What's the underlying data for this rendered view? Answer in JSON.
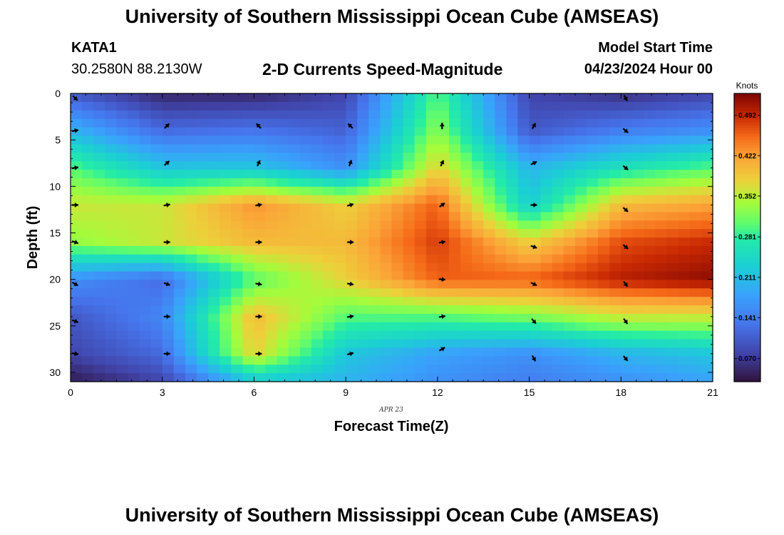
{
  "header": {
    "title": "University of Southern Mississippi Ocean Cube (AMSEAS)",
    "station": "KATA1",
    "coordinates": "30.2580N  88.2130W",
    "subtitle": "2-D Currents Speed-Magnitude",
    "model_start_label": "Model Start Time",
    "model_start_value": "04/23/2024 Hour 00"
  },
  "footer": {
    "title": "University of Southern Mississippi Ocean Cube (AMSEAS)"
  },
  "chart_data": {
    "type": "heatmap",
    "title": "2-D Currents Speed-Magnitude",
    "xlabel": "Forecast Time(Z)",
    "ylabel": "Depth (ft)",
    "date_label": "APR 23",
    "xlim": [
      0,
      21
    ],
    "ylim": [
      0,
      31
    ],
    "x_ticks": [
      0,
      3,
      6,
      9,
      12,
      15,
      18,
      21
    ],
    "y_ticks": [
      0,
      5,
      10,
      15,
      20,
      25,
      30
    ],
    "colorbar": {
      "units": "Knots",
      "range": [
        0.03,
        0.53
      ],
      "ticks": [
        0.07,
        0.141,
        0.211,
        0.281,
        0.352,
        0.422,
        0.492
      ],
      "tick_labels": [
        "0.070",
        "0.141",
        "0.211",
        "0.281",
        "0.352",
        "0.422",
        "0.492"
      ]
    },
    "speed_grid": {
      "times": [
        0,
        3,
        6,
        9,
        12,
        15,
        18,
        21
      ],
      "depths": [
        0,
        4,
        8,
        12,
        16,
        20,
        24,
        28,
        31
      ],
      "values": [
        [
          0.1,
          0.05,
          0.05,
          0.08,
          0.3,
          0.08,
          0.06,
          0.08
        ],
        [
          0.2,
          0.12,
          0.13,
          0.11,
          0.33,
          0.1,
          0.14,
          0.16
        ],
        [
          0.3,
          0.22,
          0.22,
          0.16,
          0.38,
          0.2,
          0.26,
          0.3
        ],
        [
          0.36,
          0.36,
          0.43,
          0.38,
          0.46,
          0.23,
          0.4,
          0.42
        ],
        [
          0.33,
          0.36,
          0.4,
          0.4,
          0.48,
          0.38,
          0.47,
          0.49
        ],
        [
          0.16,
          0.12,
          0.3,
          0.38,
          0.46,
          0.46,
          0.5,
          0.52
        ],
        [
          0.1,
          0.15,
          0.4,
          0.3,
          0.3,
          0.32,
          0.36,
          0.36
        ],
        [
          0.08,
          0.12,
          0.38,
          0.22,
          0.18,
          0.16,
          0.2,
          0.22
        ],
        [
          0.04,
          0.08,
          0.22,
          0.2,
          0.16,
          0.14,
          0.16,
          0.18
        ]
      ]
    },
    "vectors": [
      {
        "t": 0,
        "d": 0.5,
        "dir": 135
      },
      {
        "t": 3,
        "d": 3.5,
        "dir": 45
      },
      {
        "t": 6,
        "d": 3.5,
        "dir": -45
      },
      {
        "t": 9,
        "d": 3.5,
        "dir": -45
      },
      {
        "t": 12,
        "d": 3.5,
        "dir": 0
      },
      {
        "t": 15,
        "d": 3.5,
        "dir": 30
      },
      {
        "t": 18,
        "d": 0.5,
        "dir": 150
      },
      {
        "t": 0,
        "d": 4,
        "dir": 80
      },
      {
        "t": 18,
        "d": 4,
        "dir": 130
      },
      {
        "t": 0,
        "d": 8,
        "dir": 80
      },
      {
        "t": 3,
        "d": 7.5,
        "dir": 50
      },
      {
        "t": 6,
        "d": 7.5,
        "dir": 25
      },
      {
        "t": 9,
        "d": 7.5,
        "dir": 20
      },
      {
        "t": 12,
        "d": 7.5,
        "dir": 25
      },
      {
        "t": 15,
        "d": 7.5,
        "dir": 65
      },
      {
        "t": 18,
        "d": 8,
        "dir": 130
      },
      {
        "t": 0,
        "d": 12,
        "dir": 90
      },
      {
        "t": 3,
        "d": 12,
        "dir": 80
      },
      {
        "t": 6,
        "d": 12,
        "dir": 80
      },
      {
        "t": 9,
        "d": 12,
        "dir": 75
      },
      {
        "t": 12,
        "d": 12,
        "dir": 55
      },
      {
        "t": 15,
        "d": 12,
        "dir": 90
      },
      {
        "t": 18,
        "d": 12.5,
        "dir": 130
      },
      {
        "t": 0,
        "d": 16,
        "dir": 110
      },
      {
        "t": 3,
        "d": 16,
        "dir": 90
      },
      {
        "t": 6,
        "d": 16,
        "dir": 90
      },
      {
        "t": 9,
        "d": 16,
        "dir": 90
      },
      {
        "t": 12,
        "d": 16,
        "dir": 80
      },
      {
        "t": 15,
        "d": 16.5,
        "dir": 110
      },
      {
        "t": 18,
        "d": 16.5,
        "dir": 130
      },
      {
        "t": 0,
        "d": 20.5,
        "dir": 120
      },
      {
        "t": 3,
        "d": 20.5,
        "dir": 110
      },
      {
        "t": 6,
        "d": 20.5,
        "dir": 100
      },
      {
        "t": 9,
        "d": 20.5,
        "dir": 100
      },
      {
        "t": 12,
        "d": 20,
        "dir": 95
      },
      {
        "t": 15,
        "d": 20.5,
        "dir": 115
      },
      {
        "t": 18,
        "d": 20.5,
        "dir": 145
      },
      {
        "t": 0,
        "d": 24.5,
        "dir": 110
      },
      {
        "t": 3,
        "d": 24,
        "dir": 90
      },
      {
        "t": 6,
        "d": 24,
        "dir": 90
      },
      {
        "t": 9,
        "d": 24,
        "dir": 80
      },
      {
        "t": 12,
        "d": 24,
        "dir": 80
      },
      {
        "t": 15,
        "d": 24.5,
        "dir": 140
      },
      {
        "t": 18,
        "d": 24.5,
        "dir": 145
      },
      {
        "t": 0,
        "d": 28,
        "dir": 100
      },
      {
        "t": 3,
        "d": 28,
        "dir": 90
      },
      {
        "t": 6,
        "d": 28,
        "dir": 90
      },
      {
        "t": 9,
        "d": 28,
        "dir": 75
      },
      {
        "t": 12,
        "d": 27.5,
        "dir": 60
      },
      {
        "t": 15,
        "d": 28.5,
        "dir": 150
      },
      {
        "t": 18,
        "d": 28.5,
        "dir": 140
      }
    ]
  }
}
